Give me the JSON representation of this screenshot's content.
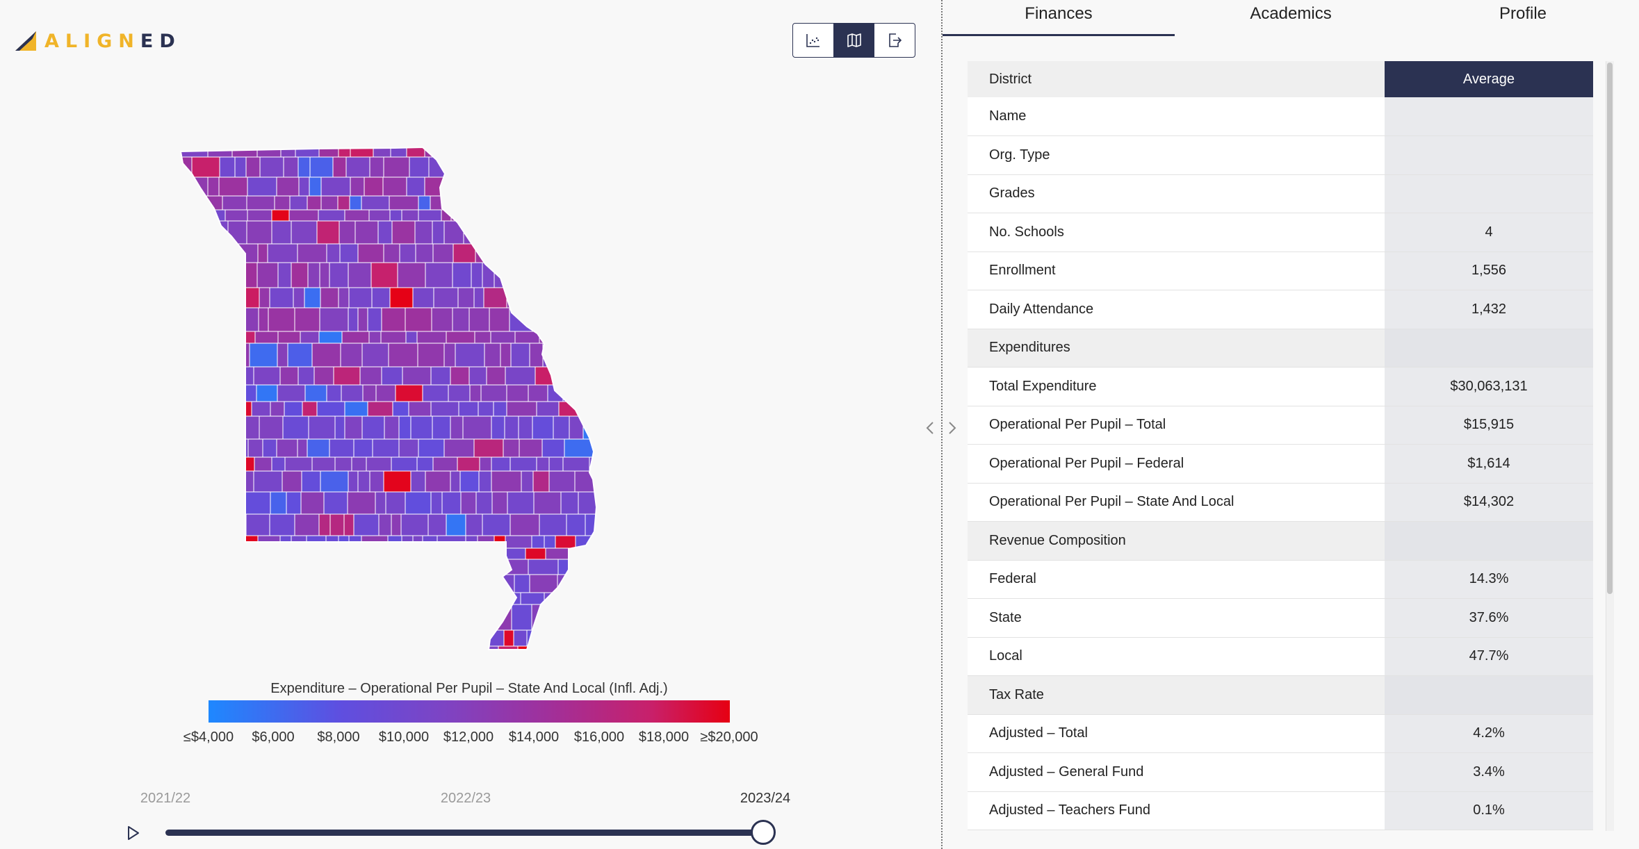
{
  "brand": {
    "logo_text_a": "ALIGN",
    "logo_text_b": "ED",
    "color_yellow": "#f0b429",
    "color_navy": "#2b3252"
  },
  "view_toggle": [
    {
      "name": "scatter-chart-icon",
      "active": false
    },
    {
      "name": "map-icon",
      "active": true
    },
    {
      "name": "export-icon",
      "active": false
    }
  ],
  "map": {
    "state": "Missouri"
  },
  "legend": {
    "title": "Expenditure – Operational Per Pupil – State And Local (Infl. Adj.)",
    "ticks": [
      "≤$4,000",
      "$6,000",
      "$8,000",
      "$10,000",
      "$12,000",
      "$14,000",
      "$16,000",
      "$18,000",
      "≥$20,000"
    ],
    "color_low": "#1e88ff",
    "color_high": "#e60012"
  },
  "timeline": {
    "years": [
      "2021/22",
      "2022/23",
      "2023/24"
    ],
    "selected": "2023/24",
    "progress": 1.0
  },
  "tabs": [
    {
      "label": "Finances",
      "active": true
    },
    {
      "label": "Academics",
      "active": false
    },
    {
      "label": "Profile",
      "active": false
    }
  ],
  "table": {
    "header": {
      "label": "District",
      "value": "Average"
    },
    "rows": [
      {
        "label": "Name",
        "value": "",
        "type": "row"
      },
      {
        "label": "Org. Type",
        "value": "",
        "type": "row"
      },
      {
        "label": "Grades",
        "value": "",
        "type": "row"
      },
      {
        "label": "No. Schools",
        "value": "4",
        "type": "row"
      },
      {
        "label": "Enrollment",
        "value": "1,556",
        "type": "row"
      },
      {
        "label": "Daily Attendance",
        "value": "1,432",
        "type": "row"
      },
      {
        "label": "Expenditures",
        "value": "",
        "type": "section"
      },
      {
        "label": "Total Expenditure",
        "value": "$30,063,131",
        "type": "row"
      },
      {
        "label": "Operational Per Pupil – Total",
        "value": "$15,915",
        "type": "row"
      },
      {
        "label": "Operational Per Pupil – Federal",
        "value": "$1,614",
        "type": "row"
      },
      {
        "label": "Operational Per Pupil – State And Local",
        "value": "$14,302",
        "type": "row"
      },
      {
        "label": "Revenue Composition",
        "value": "",
        "type": "section"
      },
      {
        "label": "Federal",
        "value": "14.3%",
        "type": "row"
      },
      {
        "label": "State",
        "value": "37.6%",
        "type": "row"
      },
      {
        "label": "Local",
        "value": "47.7%",
        "type": "row"
      },
      {
        "label": "Tax Rate",
        "value": "",
        "type": "section"
      },
      {
        "label": "Adjusted – Total",
        "value": "4.2%",
        "type": "row"
      },
      {
        "label": "Adjusted – General Fund",
        "value": "3.4%",
        "type": "row"
      },
      {
        "label": "Adjusted – Teachers Fund",
        "value": "0.1%",
        "type": "row"
      }
    ]
  }
}
